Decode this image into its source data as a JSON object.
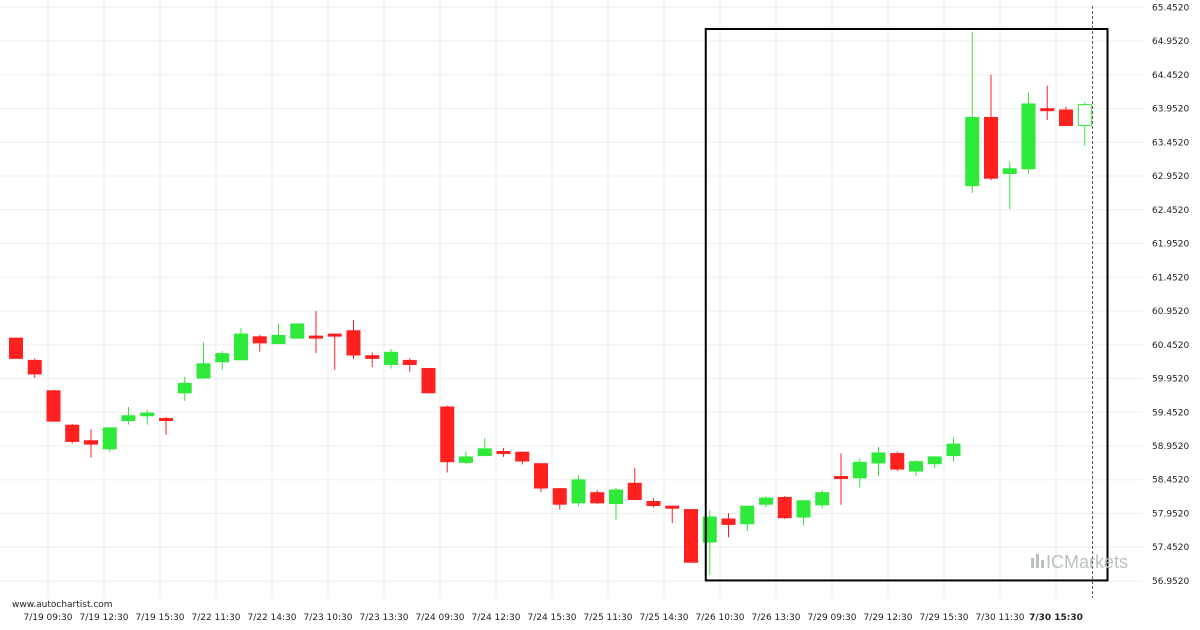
{
  "site": "www.autochartist.com",
  "brand": {
    "prefix": "IC",
    "suffix": "Markets"
  },
  "colors": {
    "bull": "#2ee83a",
    "bear": "#ff2020",
    "grid": "#eeeeee",
    "pattern_box": "#000000"
  },
  "chart_data": {
    "type": "candlestick",
    "title": "",
    "ylim": [
      56.7,
      65.56
    ],
    "y_ticks": [
      "65.4520",
      "64.9520",
      "64.4520",
      "63.9520",
      "63.4520",
      "62.9520",
      "62.4520",
      "61.9520",
      "61.4520",
      "60.9520",
      "60.4520",
      "59.9520",
      "59.4520",
      "58.9520",
      "58.4520",
      "57.9520",
      "57.4520",
      "56.9520"
    ],
    "x_labels": [
      "7/19 09:30",
      "7/19 12:30",
      "7/19 15:30",
      "7/22 11:30",
      "7/22 14:30",
      "7/23 10:30",
      "7/23 13:30",
      "7/24 09:30",
      "7/24 12:30",
      "7/24 15:30",
      "7/25 11:30",
      "7/25 14:30",
      "7/26 10:30",
      "7/26 13:30",
      "7/29 09:30",
      "7/29 12:30",
      "7/29 15:30",
      "7/30 11:30",
      "7/30 15:30"
    ],
    "candles": [
      {
        "o": 60.55,
        "h": 60.56,
        "l": 60.25,
        "c": 60.25
      },
      {
        "o": 60.22,
        "h": 60.25,
        "l": 59.96,
        "c": 60.02
      },
      {
        "o": 59.77,
        "h": 59.78,
        "l": 59.32,
        "c": 59.32
      },
      {
        "o": 59.26,
        "h": 59.28,
        "l": 58.99,
        "c": 59.02
      },
      {
        "o": 59.03,
        "h": 59.2,
        "l": 58.78,
        "c": 58.98
      },
      {
        "o": 58.91,
        "h": 59.22,
        "l": 58.86,
        "c": 59.22
      },
      {
        "o": 59.33,
        "h": 59.53,
        "l": 59.27,
        "c": 59.4
      },
      {
        "o": 59.4,
        "h": 59.49,
        "l": 59.27,
        "c": 59.44
      },
      {
        "o": 59.36,
        "h": 59.38,
        "l": 59.12,
        "c": 59.35
      },
      {
        "o": 59.74,
        "h": 59.98,
        "l": 59.62,
        "c": 59.88
      },
      {
        "o": 59.96,
        "h": 60.49,
        "l": 59.96,
        "c": 60.17
      },
      {
        "o": 60.2,
        "h": 60.36,
        "l": 60.08,
        "c": 60.32
      },
      {
        "o": 60.23,
        "h": 60.7,
        "l": 60.23,
        "c": 60.61
      },
      {
        "o": 60.57,
        "h": 60.6,
        "l": 60.35,
        "c": 60.48
      },
      {
        "o": 60.47,
        "h": 60.77,
        "l": 60.47,
        "c": 60.59
      },
      {
        "o": 60.55,
        "h": 60.75,
        "l": 60.55,
        "c": 60.76
      },
      {
        "o": 60.58,
        "h": 60.95,
        "l": 60.33,
        "c": 60.57
      },
      {
        "o": 60.61,
        "h": 60.62,
        "l": 60.08,
        "c": 60.58
      },
      {
        "o": 60.66,
        "h": 60.82,
        "l": 60.24,
        "c": 60.3
      },
      {
        "o": 60.29,
        "h": 60.34,
        "l": 60.12,
        "c": 60.25
      },
      {
        "o": 60.16,
        "h": 60.39,
        "l": 60.1,
        "c": 60.34
      },
      {
        "o": 60.22,
        "h": 60.25,
        "l": 60.05,
        "c": 60.16
      },
      {
        "o": 60.1,
        "h": 60.11,
        "l": 59.74,
        "c": 59.74
      },
      {
        "o": 59.53,
        "h": 59.55,
        "l": 58.56,
        "c": 58.72
      },
      {
        "o": 58.71,
        "h": 58.87,
        "l": 58.68,
        "c": 58.79
      },
      {
        "o": 58.81,
        "h": 59.07,
        "l": 58.81,
        "c": 58.91
      },
      {
        "o": 58.87,
        "h": 58.92,
        "l": 58.79,
        "c": 58.85
      },
      {
        "o": 58.86,
        "h": 58.87,
        "l": 58.68,
        "c": 58.73
      },
      {
        "o": 58.69,
        "h": 58.69,
        "l": 58.27,
        "c": 58.33
      },
      {
        "o": 58.32,
        "h": 58.33,
        "l": 58.01,
        "c": 58.09
      },
      {
        "o": 58.11,
        "h": 58.52,
        "l": 58.06,
        "c": 58.45
      },
      {
        "o": 58.26,
        "h": 58.3,
        "l": 58.09,
        "c": 58.11
      },
      {
        "o": 58.1,
        "h": 58.33,
        "l": 57.86,
        "c": 58.3
      },
      {
        "o": 58.4,
        "h": 58.63,
        "l": 58.15,
        "c": 58.16
      },
      {
        "o": 58.13,
        "h": 58.18,
        "l": 58.04,
        "c": 58.07
      },
      {
        "o": 58.06,
        "h": 58.07,
        "l": 57.81,
        "c": 58.05
      },
      {
        "o": 58.01,
        "h": 58.02,
        "l": 57.23,
        "c": 57.23
      },
      {
        "o": 57.53,
        "h": 58.0,
        "l": 57.04,
        "c": 57.9
      },
      {
        "o": 57.87,
        "h": 57.96,
        "l": 57.6,
        "c": 57.79
      },
      {
        "o": 57.8,
        "h": 58.07,
        "l": 57.69,
        "c": 58.06
      },
      {
        "o": 58.09,
        "h": 58.21,
        "l": 58.04,
        "c": 58.18
      },
      {
        "o": 58.19,
        "h": 58.21,
        "l": 57.87,
        "c": 57.89
      },
      {
        "o": 57.9,
        "h": 58.15,
        "l": 57.77,
        "c": 58.14
      },
      {
        "o": 58.08,
        "h": 58.3,
        "l": 58.03,
        "c": 58.26
      },
      {
        "o": 58.5,
        "h": 58.84,
        "l": 58.08,
        "c": 58.49
      },
      {
        "o": 58.48,
        "h": 58.77,
        "l": 58.34,
        "c": 58.71
      },
      {
        "o": 58.7,
        "h": 58.94,
        "l": 58.51,
        "c": 58.85
      },
      {
        "o": 58.84,
        "h": 58.87,
        "l": 58.58,
        "c": 58.61
      },
      {
        "o": 58.58,
        "h": 58.74,
        "l": 58.51,
        "c": 58.72
      },
      {
        "o": 58.69,
        "h": 58.8,
        "l": 58.62,
        "c": 58.79
      },
      {
        "o": 58.81,
        "h": 59.08,
        "l": 58.72,
        "c": 58.98
      },
      {
        "o": 62.81,
        "h": 65.09,
        "l": 62.7,
        "c": 63.82
      },
      {
        "o": 63.82,
        "h": 64.45,
        "l": 62.89,
        "c": 62.92
      },
      {
        "o": 62.99,
        "h": 63.17,
        "l": 62.46,
        "c": 63.06
      },
      {
        "o": 63.06,
        "h": 64.19,
        "l": 62.99,
        "c": 64.02
      },
      {
        "o": 63.95,
        "h": 64.29,
        "l": 63.78,
        "c": 63.92
      },
      {
        "o": 63.93,
        "h": 63.98,
        "l": 63.7,
        "c": 63.7
      },
      {
        "o": 63.7,
        "h": 64.05,
        "l": 63.4,
        "c": 64.01
      }
    ],
    "pattern_box": {
      "x_start_index": 37,
      "x_end_index": 58,
      "y_top": 65.13,
      "y_bottom": 56.96
    }
  }
}
